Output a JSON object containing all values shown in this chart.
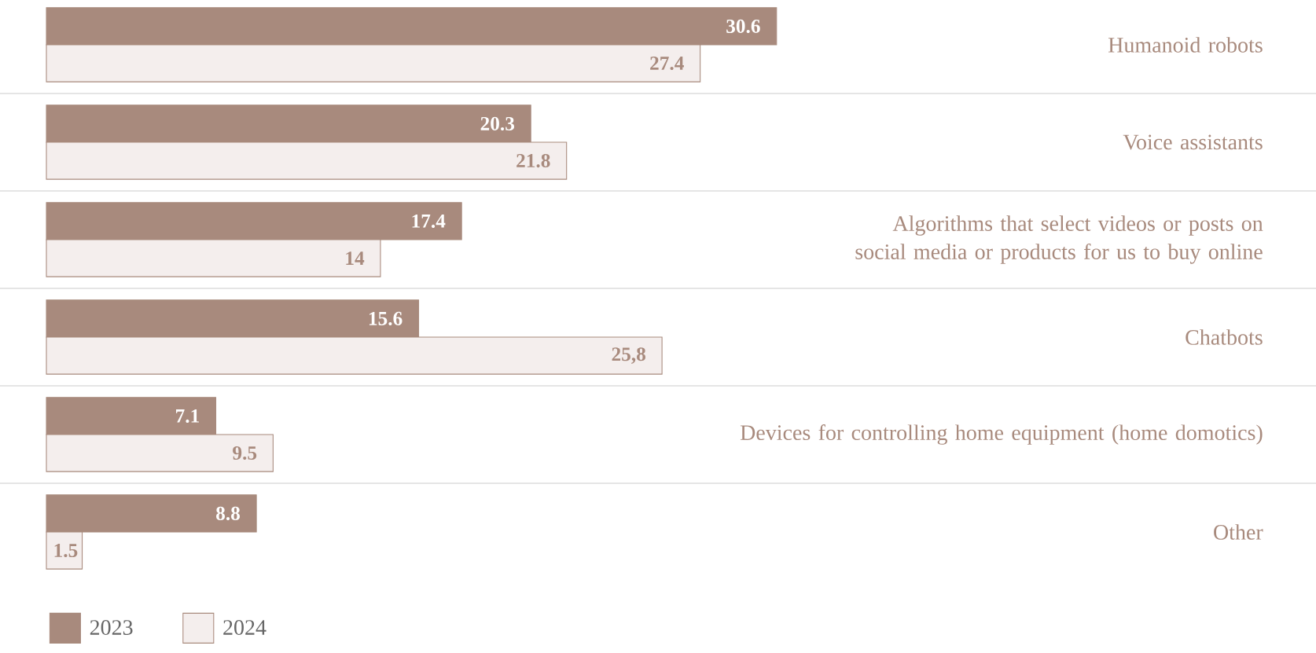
{
  "chart_data": {
    "type": "bar",
    "orientation": "horizontal",
    "categories": [
      "Humanoid robots",
      "Voice assistants",
      "Algorithms that select videos or posts on social media or products for us to buy online",
      "Chatbots",
      "Devices for controlling home equipment (home domotics)",
      "Other"
    ],
    "series": [
      {
        "name": "2023",
        "color": "#a88a7d",
        "values": [
          30.6,
          20.3,
          17.4,
          15.6,
          7.1,
          8.8
        ],
        "value_labels": [
          "30.6",
          "20.3",
          "17.4",
          "15.6",
          "7.1",
          "8.8"
        ]
      },
      {
        "name": "2024",
        "color": "#f4eeed",
        "values": [
          27.4,
          21.8,
          14,
          25.8,
          9.5,
          1.5
        ],
        "value_labels": [
          "27.4",
          "21.8",
          "14",
          "25,8",
          "9.5",
          "1.5"
        ]
      }
    ],
    "legend": "bottom left"
  }
}
